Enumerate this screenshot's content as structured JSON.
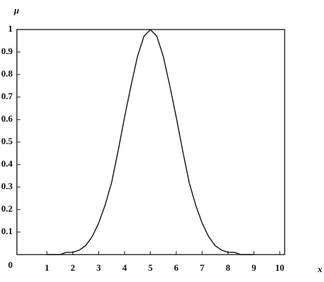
{
  "chart_data": {
    "type": "line",
    "y_label": "μ",
    "x_label": "x",
    "x": [
      1,
      1.25,
      1.5,
      1.75,
      2,
      2.25,
      2.5,
      2.75,
      3,
      3.25,
      3.5,
      3.75,
      4,
      4.25,
      4.5,
      4.75,
      5,
      5.25,
      5.5,
      5.75,
      6,
      6.25,
      6.5,
      6.75,
      7,
      7.25,
      7.5,
      7.75,
      8,
      8.25,
      8.5,
      8.75,
      9
    ],
    "values": [
      0,
      0,
      0,
      0.01,
      0.01,
      0.02,
      0.04,
      0.08,
      0.14,
      0.22,
      0.32,
      0.46,
      0.61,
      0.75,
      0.88,
      0.97,
      1,
      0.97,
      0.88,
      0.75,
      0.61,
      0.46,
      0.32,
      0.22,
      0.14,
      0.08,
      0.04,
      0.02,
      0.01,
      0.01,
      0,
      0,
      0
    ],
    "color": "#111111",
    "xlim": [
      0,
      10
    ],
    "xticks": [
      1,
      2,
      3,
      4,
      5,
      6,
      7,
      8,
      9,
      10
    ],
    "ylim": [
      0,
      1
    ],
    "yticks": [
      0,
      0.1,
      0.2,
      0.3,
      0.4,
      0.5,
      0.6,
      0.7,
      0.8,
      0.9,
      1
    ],
    "grid": false
  }
}
